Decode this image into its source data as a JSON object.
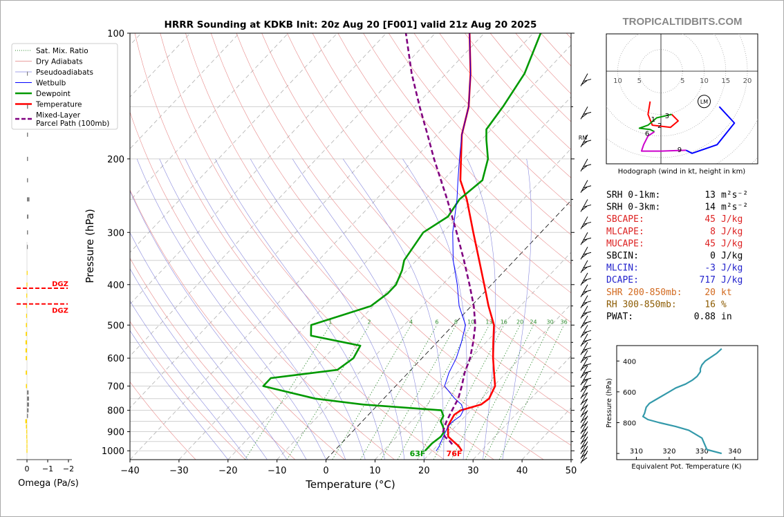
{
  "site_name": "TROPICALTIDBITS.COM",
  "chart_data": [
    {
      "type": "skew-t",
      "title": "HRRR Sounding at KDKB Init: 20z Aug 20 [F001] valid 21z Aug 20 2025",
      "xlabel": "Temperature (°C)",
      "ylabel": "Pressure (hPa)",
      "xlim": [
        -40,
        50
      ],
      "ylim": [
        1050,
        100
      ],
      "y_scale": "log",
      "x_ticks": [
        "−40",
        "−30",
        "−20",
        "−10",
        "0",
        "10",
        "20",
        "30",
        "40",
        "50"
      ],
      "y_ticks": [
        {
          "p": 100,
          "label": "100"
        },
        {
          "p": 200,
          "label": "200"
        },
        {
          "p": 300,
          "label": "300"
        },
        {
          "p": 400,
          "label": "400"
        },
        {
          "p": 500,
          "label": "500"
        },
        {
          "p": 600,
          "label": "600"
        },
        {
          "p": 700,
          "label": "700"
        },
        {
          "p": 800,
          "label": "800"
        },
        {
          "p": 900,
          "label": "900"
        },
        {
          "p": 1000,
          "label": "1000"
        }
      ],
      "legend": {
        "position": "upper-left",
        "entries": [
          {
            "label": "Sat. Mix. Ratio",
            "color": "#2e8b2e",
            "style": "dotted"
          },
          {
            "label": "Dry Adiabats",
            "color": "#e08080",
            "style": "thin"
          },
          {
            "label": "Pseudoadiabats",
            "color": "#8080e0",
            "style": "thin"
          },
          {
            "label": "Wetbulb",
            "color": "#0000ff",
            "style": "solid"
          },
          {
            "label": "Dewpoint",
            "color": "#009900",
            "style": "thick"
          },
          {
            "label": "Temperature",
            "color": "#ff0000",
            "style": "thick"
          },
          {
            "label": "Mixed-Layer\nParcel Path (100mb)",
            "color": "#800080",
            "style": "dashed"
          }
        ]
      },
      "mixing_ratio_labels": [
        "1",
        "2",
        "4",
        "6",
        "8",
        "10",
        "13",
        "16",
        "20",
        "24",
        "30",
        "36"
      ],
      "mixing_ratio_values": [
        1,
        2,
        4,
        6,
        8,
        10,
        13,
        16,
        20,
        24,
        30,
        36
      ],
      "series": [
        {
          "name": "Temperature",
          "color": "#ff0000",
          "points": [
            [
              1000,
              26
            ],
            [
              975,
              24.5
            ],
            [
              950,
              22.5
            ],
            [
              925,
              20.5
            ],
            [
              900,
              19.5
            ],
            [
              875,
              18.5
            ],
            [
              850,
              18.0
            ],
            [
              820,
              17.5
            ],
            [
              800,
              18.0
            ],
            [
              775,
              21.0
            ],
            [
              750,
              21.5
            ],
            [
              700,
              20.3
            ],
            [
              650,
              17.5
            ],
            [
              600,
              14.5
            ],
            [
              550,
              11.5
            ],
            [
              500,
              8.3
            ],
            [
              450,
              3.5
            ],
            [
              400,
              -1.5
            ],
            [
              350,
              -7.2
            ],
            [
              300,
              -13.8
            ],
            [
              250,
              -21.5
            ],
            [
              225,
              -26.5
            ],
            [
              200,
              -30.5
            ],
            [
              175,
              -35
            ],
            [
              150,
              -39
            ],
            [
              125,
              -45
            ],
            [
              100,
              -53
            ]
          ]
        },
        {
          "name": "Dewpoint",
          "color": "#009900",
          "points": [
            [
              1000,
              18.5
            ],
            [
              960,
              18.5
            ],
            [
              925,
              19
            ],
            [
              900,
              18.7
            ],
            [
              875,
              17.5
            ],
            [
              850,
              16
            ],
            [
              825,
              15.5
            ],
            [
              800,
              14
            ],
            [
              775,
              -3
            ],
            [
              750,
              -14
            ],
            [
              700,
              -27
            ],
            [
              670,
              -27
            ],
            [
              640,
              -15
            ],
            [
              600,
              -14
            ],
            [
              560,
              -15
            ],
            [
              530,
              -27
            ],
            [
              500,
              -29
            ],
            [
              470,
              -24
            ],
            [
              450,
              -20.5
            ],
            [
              420,
              -19.5
            ],
            [
              400,
              -19.5
            ],
            [
              370,
              -21
            ],
            [
              350,
              -22.5
            ],
            [
              300,
              -24
            ],
            [
              275,
              -22
            ],
            [
              250,
              -23
            ],
            [
              225,
              -22
            ],
            [
              200,
              -25
            ],
            [
              180,
              -29
            ],
            [
              170,
              -31
            ],
            [
              150,
              -32
            ],
            [
              125,
              -34
            ],
            [
              100,
              -38.5
            ]
          ]
        },
        {
          "name": "Wetbulb",
          "color": "#0000ff",
          "points": [
            [
              1000,
              20.8
            ],
            [
              975,
              20.5
            ],
            [
              950,
              20
            ],
            [
              925,
              19.5
            ],
            [
              900,
              19
            ],
            [
              875,
              18.5
            ],
            [
              850,
              18.5
            ],
            [
              825,
              19
            ],
            [
              800,
              18.5
            ],
            [
              775,
              17
            ],
            [
              750,
              14.5
            ],
            [
              700,
              10
            ],
            [
              650,
              8.3
            ],
            [
              600,
              7
            ],
            [
              550,
              5
            ],
            [
              500,
              2.5
            ],
            [
              450,
              -2.5
            ],
            [
              400,
              -7
            ],
            [
              350,
              -12.5
            ],
            [
              300,
              -18
            ],
            [
              250,
              -23.5
            ],
            [
              225,
              -27
            ],
            [
              200,
              -30.8
            ],
            [
              175,
              -35
            ],
            [
              150,
              -39
            ],
            [
              125,
              -45
            ],
            [
              100,
              -53
            ]
          ]
        },
        {
          "name": "Mixed-Layer\nParcel Path (100mb)",
          "color": "#800080",
          "points": [
            [
              965,
              22.8
            ],
            [
              950,
              21.8
            ],
            [
              925,
              19.8
            ],
            [
              900,
              18.5
            ],
            [
              875,
              17.8
            ],
            [
              850,
              17.2
            ],
            [
              800,
              16.2
            ],
            [
              750,
              15.2
            ],
            [
              700,
              13.5
            ],
            [
              650,
              11.5
            ],
            [
              600,
              9.8
            ],
            [
              550,
              7.4
            ],
            [
              500,
              4.5
            ],
            [
              450,
              0.5
            ],
            [
              400,
              -4.5
            ],
            [
              350,
              -10.3
            ],
            [
              300,
              -17.2
            ],
            [
              250,
              -25.5
            ],
            [
              200,
              -36
            ],
            [
              175,
              -42
            ],
            [
              150,
              -49
            ],
            [
              125,
              -57
            ],
            [
              100,
              -66
            ]
          ]
        }
      ],
      "surface_labels": {
        "dewpoint": "63F",
        "temperature": "76F"
      }
    },
    {
      "type": "bar",
      "title": "Omega",
      "xlabel": "Omega (Pa/s)",
      "xlim": [
        0,
        -2
      ],
      "x_ticks": [
        "0",
        "−1",
        "−2"
      ],
      "dgz_label": "DGZ",
      "dgz_bounds": [
        408,
        445
      ],
      "bars": [
        {
          "p": 1000,
          "value": 0.02,
          "color": "#ffd700"
        },
        {
          "p": 975,
          "value": 0.02,
          "color": "#ffd700"
        },
        {
          "p": 950,
          "value": 0.02,
          "color": "#ffd700"
        },
        {
          "p": 925,
          "value": 0.03,
          "color": "#ffd700"
        },
        {
          "p": 900,
          "value": 0.03,
          "color": "#ffd700"
        },
        {
          "p": 875,
          "value": 0.05,
          "color": "#ffd700"
        },
        {
          "p": 850,
          "value": 0.08,
          "color": "#ffd700"
        },
        {
          "p": 825,
          "value": -0.05,
          "color": "#808080"
        },
        {
          "p": 800,
          "value": -0.08,
          "color": "#808080"
        },
        {
          "p": 775,
          "value": -0.1,
          "color": "#808080"
        },
        {
          "p": 750,
          "value": -0.1,
          "color": "#808080"
        },
        {
          "p": 725,
          "value": -0.08,
          "color": "#808080"
        },
        {
          "p": 700,
          "value": 0.05,
          "color": "#ffd700"
        },
        {
          "p": 650,
          "value": 0.06,
          "color": "#ffd700"
        },
        {
          "p": 600,
          "value": 0.06,
          "color": "#ffd700"
        },
        {
          "p": 575,
          "value": 0.07,
          "color": "#ffd700"
        },
        {
          "p": 550,
          "value": 0.07,
          "color": "#ffd700"
        },
        {
          "p": 525,
          "value": 0.06,
          "color": "#ffd700"
        },
        {
          "p": 500,
          "value": 0.05,
          "color": "#ffd700"
        },
        {
          "p": 475,
          "value": 0.04,
          "color": "#ffd700"
        },
        {
          "p": 450,
          "value": 0.04,
          "color": "#ffd700"
        },
        {
          "p": 425,
          "value": 0.03,
          "color": "#ffd700"
        },
        {
          "p": 400,
          "value": 0.02,
          "color": "#ffd700"
        },
        {
          "p": 375,
          "value": 0.01,
          "color": "#ffd700"
        },
        {
          "p": 325,
          "value": -0.03,
          "color": "#808080"
        },
        {
          "p": 300,
          "value": -0.05,
          "color": "#808080"
        },
        {
          "p": 275,
          "value": -0.07,
          "color": "#808080"
        },
        {
          "p": 250,
          "value": -0.12,
          "color": "#808080"
        },
        {
          "p": 225,
          "value": -0.05,
          "color": "#808080"
        },
        {
          "p": 200,
          "value": -0.05,
          "color": "#808080"
        },
        {
          "p": 175,
          "value": -0.05,
          "color": "#808080"
        },
        {
          "p": 150,
          "value": -0.05,
          "color": "#808080"
        },
        {
          "p": 125,
          "value": -0.02,
          "color": "#808080"
        }
      ]
    },
    {
      "type": "line",
      "title": "Hodograph (wind in kt, height in km)",
      "x_ticks": [
        "10",
        "5",
        "5",
        "10",
        "15",
        "20"
      ],
      "x_tick_values": [
        -10,
        -5,
        5,
        10,
        15,
        20
      ],
      "storm_motion_labels": {
        "left": "LM",
        "right": "RM"
      },
      "segments": [
        {
          "color": "#ff0000",
          "points": [
            [
              -2.5,
              -7
            ],
            [
              -3,
              -10
            ],
            [
              -2,
              -12.5
            ],
            [
              2.2,
              -13
            ],
            [
              4,
              -11.5
            ],
            [
              2.5,
              -10
            ]
          ]
        },
        {
          "color": "#009900",
          "points": [
            [
              2.5,
              -10
            ],
            [
              -1,
              -10.8
            ],
            [
              -3,
              -12.5
            ],
            [
              -5,
              -13.2
            ],
            [
              -2.5,
              -13.5
            ],
            [
              -1.5,
              -14
            ]
          ]
        },
        {
          "color": "#cc00cc",
          "points": [
            [
              -1.5,
              -14
            ],
            [
              -3,
              -15
            ],
            [
              -4,
              -17
            ],
            [
              -4.5,
              -18.5
            ],
            [
              0,
              -18.5
            ],
            [
              5.8,
              -18.3
            ]
          ]
        },
        {
          "color": "#0000ff",
          "points": [
            [
              5.8,
              -18.3
            ],
            [
              7.2,
              -19
            ],
            [
              13,
              -17
            ],
            [
              17,
              -12
            ],
            [
              13.5,
              -8.2
            ]
          ]
        }
      ],
      "height_labels": [
        {
          "text": "1",
          "u": -1.8,
          "v": -11
        },
        {
          "text": "2",
          "u": -0.3,
          "v": -12.5
        },
        {
          "text": "3",
          "u": 1.4,
          "v": -10.2
        },
        {
          "text": "6",
          "u": -3.2,
          "v": -14.3
        },
        {
          "text": "9",
          "u": 4.3,
          "v": -18.1
        }
      ],
      "lm": [
        10,
        -7
      ]
    },
    {
      "type": "line",
      "title": "",
      "xlabel": "Equivalent Pot. Temperature (K)",
      "ylabel": "Pressure (hPa)",
      "xlim": [
        304,
        347
      ],
      "ylim": [
        1040,
        300
      ],
      "x_ticks": [
        "310",
        "320",
        "330",
        "340"
      ],
      "y_ticks": [
        {
          "p": 400,
          "label": "400"
        },
        {
          "p": 600,
          "label": "600"
        },
        {
          "p": 800,
          "label": "800"
        }
      ],
      "color": "#3399aa",
      "points": [
        [
          1000,
          336
        ],
        [
          975,
          331.5
        ],
        [
          950,
          331
        ],
        [
          900,
          330
        ],
        [
          875,
          328
        ],
        [
          850,
          326
        ],
        [
          825,
          322
        ],
        [
          800,
          317
        ],
        [
          780,
          313.5
        ],
        [
          760,
          312
        ],
        [
          740,
          312.5
        ],
        [
          700,
          313
        ],
        [
          675,
          314
        ],
        [
          650,
          316
        ],
        [
          600,
          320
        ],
        [
          575,
          322
        ],
        [
          550,
          325
        ],
        [
          525,
          327
        ],
        [
          500,
          328.5
        ],
        [
          470,
          329.5
        ],
        [
          450,
          329.5
        ],
        [
          425,
          330
        ],
        [
          400,
          331
        ],
        [
          350,
          334.5
        ],
        [
          320,
          336
        ]
      ]
    }
  ],
  "stats": [
    {
      "label": "SRH 0-1km:",
      "value": "13",
      "unit": "m²s⁻²",
      "color": "#000000"
    },
    {
      "label": "SRH 0-3km:",
      "value": "14",
      "unit": "m²s⁻²",
      "color": "#000000"
    },
    {
      "label": "SBCAPE:",
      "value": "45",
      "unit": "J/kg",
      "color": "#dd2222"
    },
    {
      "label": "MLCAPE:",
      "value": "8",
      "unit": "J/kg",
      "color": "#dd2222"
    },
    {
      "label": "MUCAPE:",
      "value": "45",
      "unit": "J/kg",
      "color": "#dd2222"
    },
    {
      "label": "SBCIN:",
      "value": "0",
      "unit": "J/kg",
      "color": "#000000"
    },
    {
      "label": "MLCIN:",
      "value": "-3",
      "unit": "J/kg",
      "color": "#2222cc"
    },
    {
      "label": "DCAPE:",
      "value": "717",
      "unit": "J/kg",
      "color": "#2222cc"
    },
    {
      "label": "SHR 200-850mb:",
      "value": "20",
      "unit": "kt",
      "color": "#d2691e"
    },
    {
      "label": "RH 300-850mb:",
      "value": "16",
      "unit": "%",
      "color": "#8b5a00"
    },
    {
      "label": "PWAT:",
      "value": "0.88",
      "unit": "in",
      "color": "#000000"
    }
  ]
}
